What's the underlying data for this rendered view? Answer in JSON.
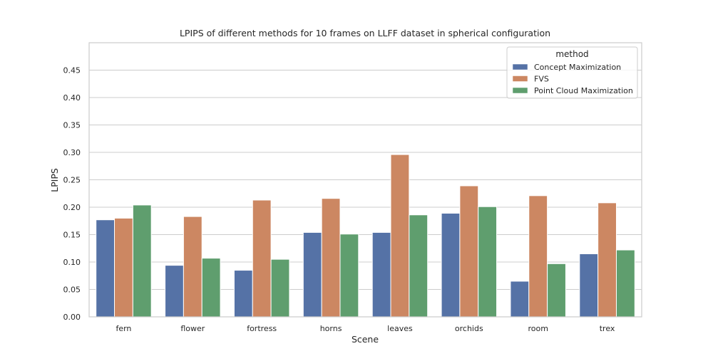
{
  "chart_data": {
    "type": "bar",
    "title": "LPIPS of different methods for 10 frames on LLFF dataset in spherical configuration",
    "xlabel": "Scene",
    "ylabel": "LPIPS",
    "ylim": [
      0,
      0.5
    ],
    "yticks": [
      "0.00",
      "0.05",
      "0.10",
      "0.15",
      "0.20",
      "0.25",
      "0.30",
      "0.35",
      "0.40",
      "0.45"
    ],
    "grid": true,
    "legend": {
      "title": "method",
      "placement": "top-right"
    },
    "categories": [
      "fern",
      "flower",
      "fortress",
      "horns",
      "leaves",
      "orchids",
      "room",
      "trex"
    ],
    "series": [
      {
        "name": "Concept Maximization",
        "color": "#5572a6",
        "values": [
          0.177,
          0.094,
          0.085,
          0.154,
          0.154,
          0.189,
          0.065,
          0.115
        ]
      },
      {
        "name": "FVS",
        "color": "#cc8762",
        "values": [
          0.18,
          0.183,
          0.213,
          0.216,
          0.296,
          0.239,
          0.221,
          0.208
        ]
      },
      {
        "name": "Point Cloud Maximization",
        "color": "#5f9e6e",
        "values": [
          0.204,
          0.107,
          0.105,
          0.151,
          0.186,
          0.201,
          0.097,
          0.122
        ]
      }
    ]
  }
}
